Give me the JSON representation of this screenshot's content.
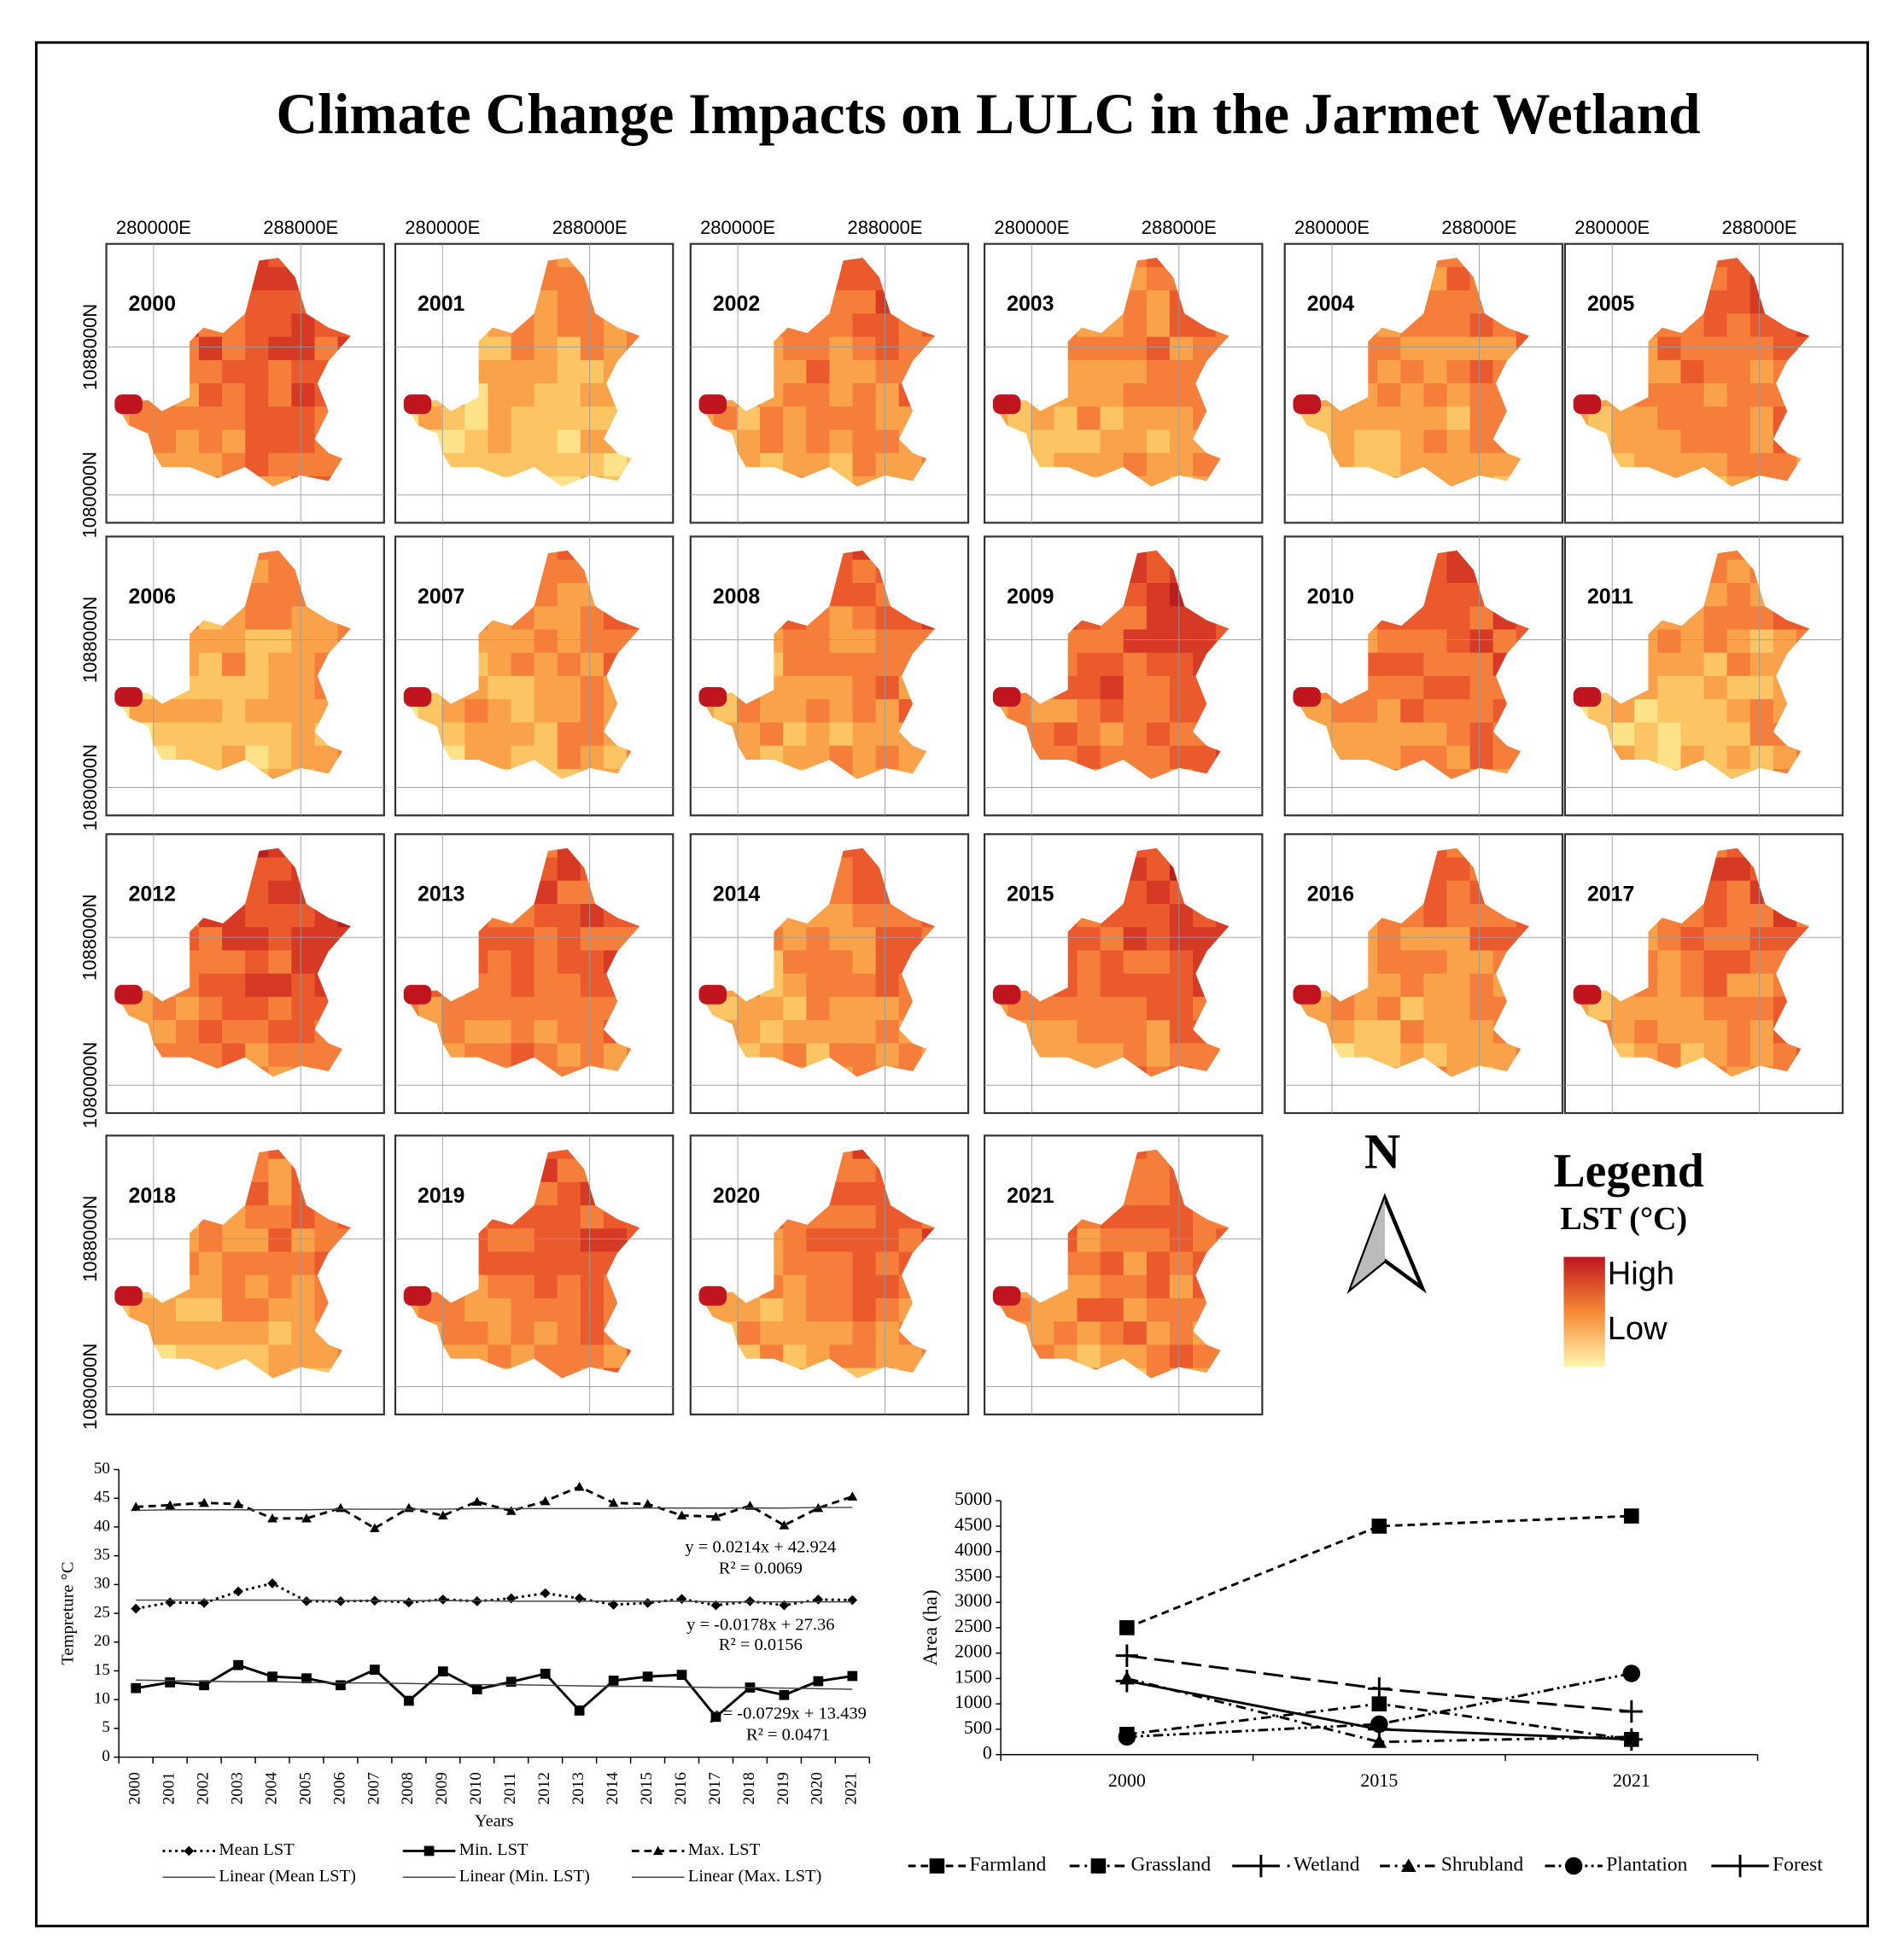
{
  "title": "Climate Change Impacts on LULC in the Jarmet Wetland",
  "maps": {
    "years": [
      "2000",
      "2001",
      "2002",
      "2003",
      "2004",
      "2005",
      "2006",
      "2007",
      "2008",
      "2009",
      "2010",
      "2011",
      "2012",
      "2013",
      "2014",
      "2015",
      "2016",
      "2017",
      "2018",
      "2019",
      "2020",
      "2021"
    ],
    "x_labels": [
      "280000E",
      "288000E"
    ],
    "y_labels": [
      "1088000N",
      "1080000N"
    ]
  },
  "legend": {
    "north": "N",
    "title": "Legend",
    "subtitle": "LST (°C)",
    "high": "High",
    "low": "Low"
  },
  "chart_data": [
    {
      "type": "line",
      "x_label": "Years",
      "y_label": "Tempreture °C",
      "categories": [
        "2000",
        "2001",
        "2002",
        "2003",
        "2004",
        "2005",
        "2006",
        "2007",
        "2008",
        "2009",
        "2010",
        "2011",
        "2012",
        "2013",
        "2014",
        "2015",
        "2016",
        "2017",
        "2018",
        "2019",
        "2020",
        "2021"
      ],
      "ylim": [
        0,
        50
      ],
      "yticks": [
        0,
        5,
        10,
        15,
        20,
        25,
        30,
        35,
        40,
        45,
        50
      ],
      "series": [
        {
          "name": "Mean LST",
          "color": "#000000",
          "dash": "dotted",
          "marker": "diamond",
          "values": [
            25.8,
            26.9,
            26.8,
            28.8,
            30.2,
            27.1,
            27.1,
            27.2,
            26.9,
            27.4,
            27.1,
            27.6,
            28.5,
            27.6,
            26.5,
            26.8,
            27.5,
            26.4,
            27.1,
            26.4,
            27.4,
            27.3
          ]
        },
        {
          "name": "Min. LST",
          "color": "#000000",
          "dash": "solid",
          "marker": "square",
          "values": [
            12,
            13,
            12.5,
            16,
            14,
            13.7,
            12.5,
            15.2,
            9.8,
            14.9,
            11.8,
            13.1,
            14.5,
            8.1,
            13.3,
            14,
            14.3,
            7,
            12.1,
            10.8,
            13.2,
            14.1
          ]
        },
        {
          "name": "Max. LST",
          "color": "#000000",
          "dash": "dashed",
          "marker": "triangle",
          "values": [
            43.5,
            43.8,
            44.2,
            44,
            41.5,
            41.5,
            43.3,
            39.8,
            43.3,
            42,
            44.4,
            42.8,
            44.5,
            47,
            44.2,
            44,
            42,
            41.8,
            43.7,
            40.3,
            43.3,
            45.3
          ]
        },
        {
          "name": "Linear (Mean LST)",
          "color": "#444444",
          "dash": "thin",
          "marker": "none",
          "values": [
            27.3,
            27.3,
            27.3,
            27.3,
            27.3,
            27.3,
            27.2,
            27.2,
            27.2,
            27.2,
            27.2,
            27.1,
            27.1,
            27.1,
            27.1,
            27.1,
            27.1,
            27.0,
            27.0,
            27.0,
            27.0,
            27.0
          ]
        },
        {
          "name": "Linear (Min. LST)",
          "color": "#444444",
          "dash": "thin",
          "marker": "none",
          "values": [
            13.4,
            13.3,
            13.2,
            13.1,
            13.1,
            13.0,
            12.9,
            12.9,
            12.8,
            12.7,
            12.6,
            12.6,
            12.5,
            12.4,
            12.3,
            12.3,
            12.2,
            12.1,
            12.1,
            12.0,
            11.9,
            11.8
          ]
        },
        {
          "name": "Linear (Max. LST)",
          "color": "#444444",
          "dash": "thin",
          "marker": "none",
          "values": [
            42.9,
            43.0,
            43.0,
            43.0,
            43.0,
            43.0,
            43.1,
            43.1,
            43.1,
            43.1,
            43.2,
            43.2,
            43.2,
            43.2,
            43.2,
            43.3,
            43.3,
            43.3,
            43.3,
            43.3,
            43.4,
            43.4
          ]
        }
      ],
      "annotations": [
        "y = 0.0214x + 42.924",
        "R² = 0.0069",
        "y = -0.0178x + 27.36",
        "R² = 0.0156",
        "y = -0.0729x + 13.439",
        "R² = 0.0471"
      ]
    },
    {
      "type": "line",
      "y_label": "Area (ha)",
      "categories": [
        "2000",
        "2015",
        "2021"
      ],
      "ylim": [
        0,
        5000
      ],
      "yticks": [
        0,
        500,
        1000,
        1500,
        2000,
        2500,
        3000,
        3500,
        4000,
        4500,
        5000
      ],
      "series": [
        {
          "name": "Farmland",
          "color": "#000000",
          "dash": "dashed",
          "marker": "square",
          "values": [
            2500,
            4500,
            4700
          ]
        },
        {
          "name": "Grassland",
          "color": "#000000",
          "dash": "dash-dot",
          "marker": "square",
          "values": [
            400,
            1000,
            300
          ]
        },
        {
          "name": "Wetland",
          "color": "#000000",
          "dash": "long-dash",
          "marker": "plus",
          "values": [
            1950,
            1300,
            850
          ]
        },
        {
          "name": "Shrubland",
          "color": "#000000",
          "dash": "dash-dot",
          "marker": "triangle",
          "values": [
            1500,
            250,
            350
          ]
        },
        {
          "name": "Plantation",
          "color": "#000000",
          "dash": "dash-dot-dot",
          "marker": "circle",
          "values": [
            350,
            600,
            1600
          ]
        },
        {
          "name": "Forest",
          "color": "#000000",
          "dash": "solid",
          "marker": "plus",
          "values": [
            1450,
            500,
            300
          ]
        }
      ]
    }
  ]
}
